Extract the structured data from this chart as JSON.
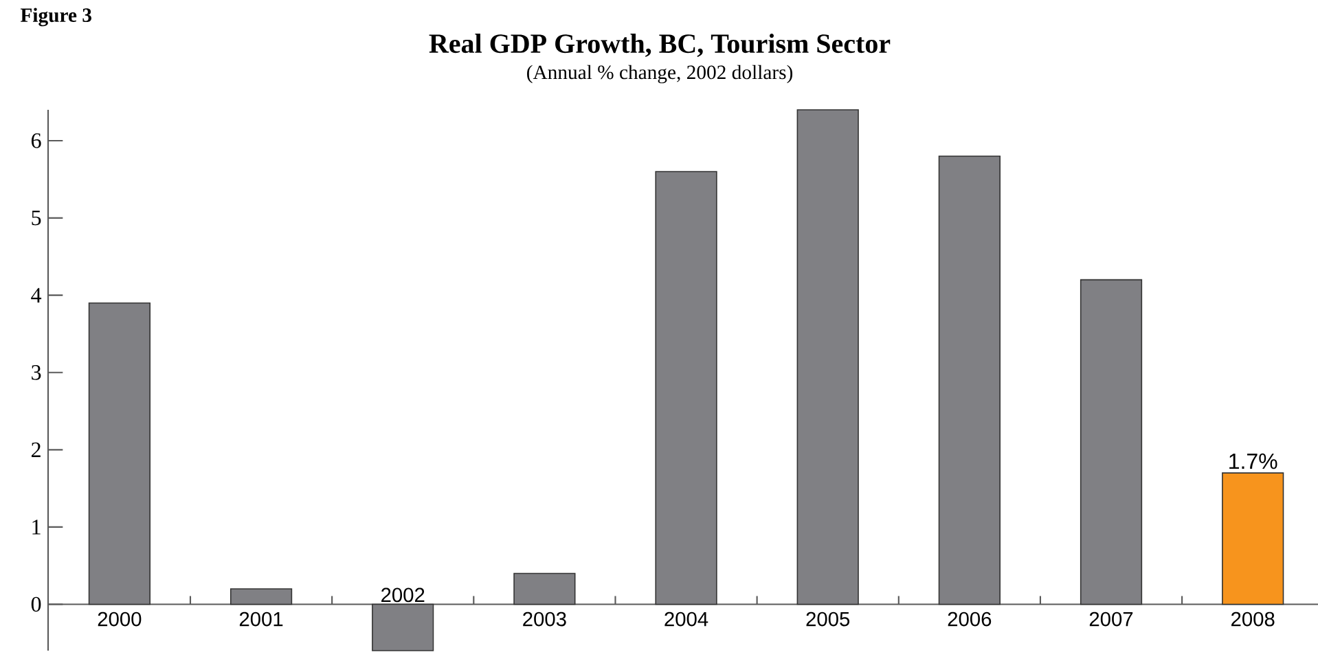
{
  "chart_data": {
    "type": "bar",
    "title": "Real GDP Growth, BC, Tourism Sector",
    "subtitle": "(Annual % change, 2002 dollars)",
    "annotations": [
      "Figure 3"
    ],
    "categories": [
      "2000",
      "2001",
      "2002",
      "2003",
      "2004",
      "2005",
      "2006",
      "2007",
      "2008"
    ],
    "values": [
      3.9,
      0.2,
      -0.6,
      0.4,
      5.6,
      6.4,
      5.8,
      4.2,
      1.7
    ],
    "colors": [
      "#808084",
      "#808084",
      "#808084",
      "#808084",
      "#808084",
      "#808084",
      "#808084",
      "#808084",
      "#f7941d"
    ],
    "value_labels": [
      null,
      null,
      null,
      null,
      null,
      null,
      null,
      null,
      "1.7%"
    ],
    "ylim": [
      -0.6,
      6.4
    ],
    "yticks": [
      0,
      1,
      2,
      3,
      4,
      5,
      6
    ]
  }
}
